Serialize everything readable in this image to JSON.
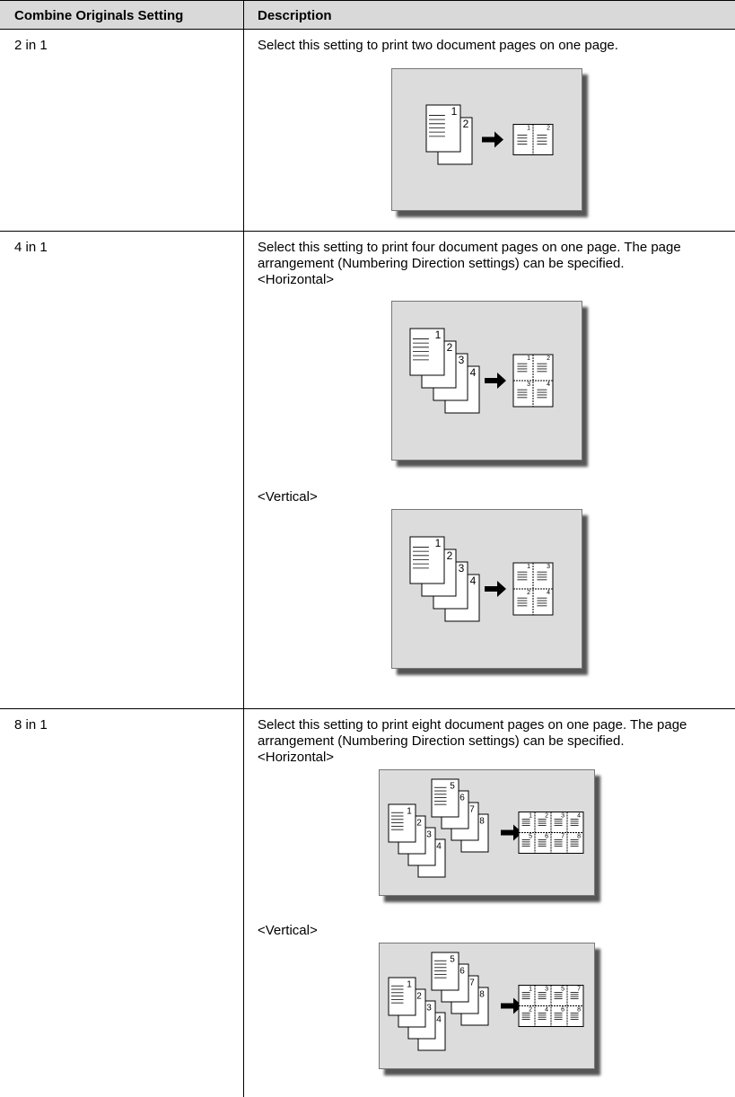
{
  "table": {
    "header": [
      "Combine Originals Setting",
      "Description"
    ],
    "rows": [
      {
        "setting": "2 in 1",
        "description": "Select this setting to print two document pages on one page.",
        "figures": [
          {
            "pages": [
              "1",
              "2"
            ],
            "sheet": [
              "1",
              "2"
            ]
          }
        ]
      },
      {
        "setting": "4 in 1",
        "description": "Select this setting to print four document pages on one page. The page arrangement (Numbering Direction settings) can be specified.",
        "figures": [
          {
            "caption": "<Horizontal>",
            "pages": [
              "1",
              "2",
              "3",
              "4"
            ],
            "sheet": [
              "1",
              "2",
              "3",
              "4"
            ]
          },
          {
            "caption": "<Vertical>",
            "pages": [
              "1",
              "2",
              "3",
              "4"
            ],
            "sheet": [
              "1",
              "3",
              "2",
              "4"
            ]
          }
        ]
      },
      {
        "setting": "8 in 1",
        "description": "Select this setting to print eight document pages on one page. The page arrangement (Numbering Direction settings) can be specified.",
        "figures": [
          {
            "caption": "<Horizontal>",
            "pages": [
              "1",
              "2",
              "3",
              "4",
              "5",
              "6",
              "7",
              "8"
            ],
            "sheet": [
              "1",
              "2",
              "3",
              "4",
              "5",
              "6",
              "7",
              "8"
            ]
          },
          {
            "caption": "<Vertical>",
            "pages": [
              "1",
              "2",
              "3",
              "4",
              "5",
              "6",
              "7",
              "8"
            ],
            "sheet": [
              "1",
              "3",
              "5",
              "7",
              "2",
              "4",
              "6",
              "8"
            ]
          }
        ]
      }
    ]
  }
}
